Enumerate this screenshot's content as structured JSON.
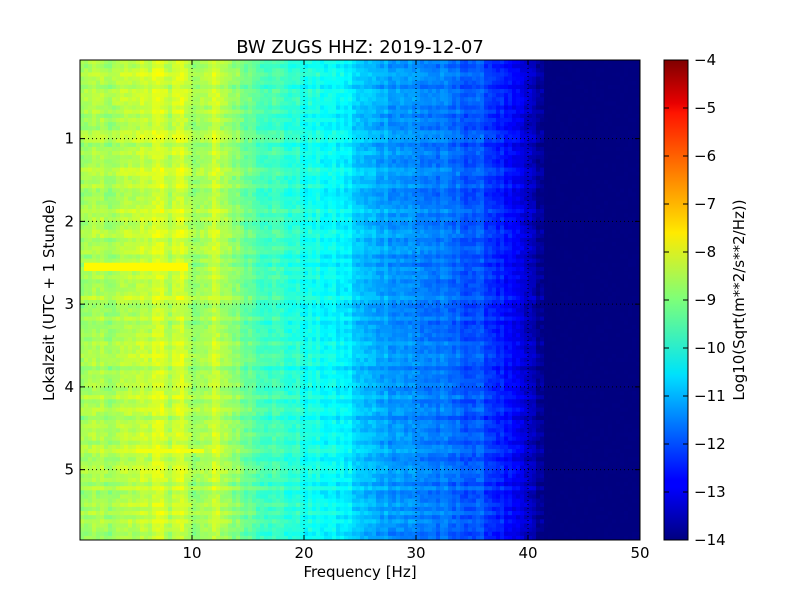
{
  "chart_data": {
    "type": "heatmap",
    "title": "BW ZUGS HHZ: 2019-12-07",
    "xlabel": "Frequency [Hz]",
    "ylabel": "Lokalzeit (UTC + 1 Stunde)",
    "xlim": [
      0,
      50
    ],
    "ylim": [
      5.85,
      0.05
    ],
    "x_ticks": [
      10,
      20,
      30,
      40,
      50
    ],
    "y_ticks": [
      1,
      2,
      3,
      4,
      5
    ],
    "grid": true,
    "colormap": "jet",
    "colorbar": {
      "label": "Log10(Sqrt(m**2/s**2/Hz))",
      "range": [
        -14,
        -4
      ],
      "ticks": [
        -4,
        -5,
        -6,
        -7,
        -8,
        -9,
        -10,
        -11,
        -12,
        -13,
        -14
      ]
    },
    "frequency_profile": {
      "x": [
        0,
        2,
        4,
        6,
        7,
        8,
        9,
        10,
        11,
        12,
        14,
        16,
        18,
        20,
        22,
        24,
        25,
        26,
        28,
        30,
        32,
        34,
        36,
        38,
        39,
        40,
        41,
        42,
        50
      ],
      "values": [
        -8.8,
        -8.6,
        -8.5,
        -8.4,
        -8.0,
        -8.5,
        -8.0,
        -8.6,
        -8.8,
        -8.3,
        -8.9,
        -9.4,
        -9.7,
        -10.0,
        -10.2,
        -10.4,
        -10.9,
        -11.0,
        -11.2,
        -11.4,
        -11.6,
        -11.8,
        -12.0,
        -12.6,
        -13.0,
        -13.3,
        -13.8,
        -14.0,
        -14.0
      ]
    },
    "annotations": [
      {
        "hour": 2.55,
        "x_range": [
          0.5,
          9.5
        ],
        "value": -7.7
      },
      {
        "hour": 4.78,
        "x_range": [
          5,
          11
        ],
        "value": -7.9
      }
    ]
  }
}
